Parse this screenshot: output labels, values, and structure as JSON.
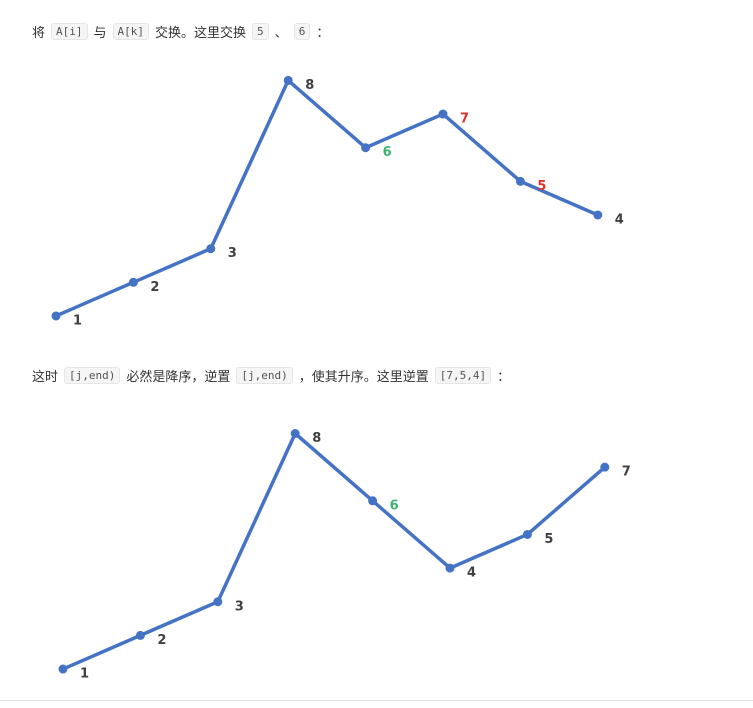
{
  "paragraphs": [
    {
      "parts": [
        {
          "text": "将"
        },
        {
          "code": "A[i]"
        },
        {
          "text": "与"
        },
        {
          "code": "A[k]"
        },
        {
          "text": "交换。这里交换"
        },
        {
          "code": "5"
        },
        {
          "text": "、"
        },
        {
          "code": "6"
        },
        {
          "text": "："
        }
      ]
    },
    {
      "parts": [
        {
          "text": "这时"
        },
        {
          "code": "[j,end)"
        },
        {
          "text": "必然是降序，逆置"
        },
        {
          "code": "[j,end)"
        },
        {
          "text": "，使其升序。这里逆置"
        },
        {
          "code": "[7,5,4]"
        },
        {
          "text": "："
        }
      ]
    }
  ],
  "chart_data": [
    {
      "type": "line",
      "values": [
        1,
        2,
        3,
        8,
        6,
        7,
        5,
        4
      ],
      "color": "#4472c4",
      "label_colors": [
        "#404040",
        "#404040",
        "#404040",
        "#404040",
        "#3cb371",
        "#e0302a",
        "#e0302a",
        "#404040"
      ]
    },
    {
      "type": "line",
      "values": [
        1,
        2,
        3,
        8,
        6,
        4,
        5,
        7
      ],
      "color": "#4472c4",
      "label_colors": [
        "#404040",
        "#404040",
        "#404040",
        "#404040",
        "#3cb371",
        "#404040",
        "#404040",
        "#404040"
      ]
    }
  ]
}
